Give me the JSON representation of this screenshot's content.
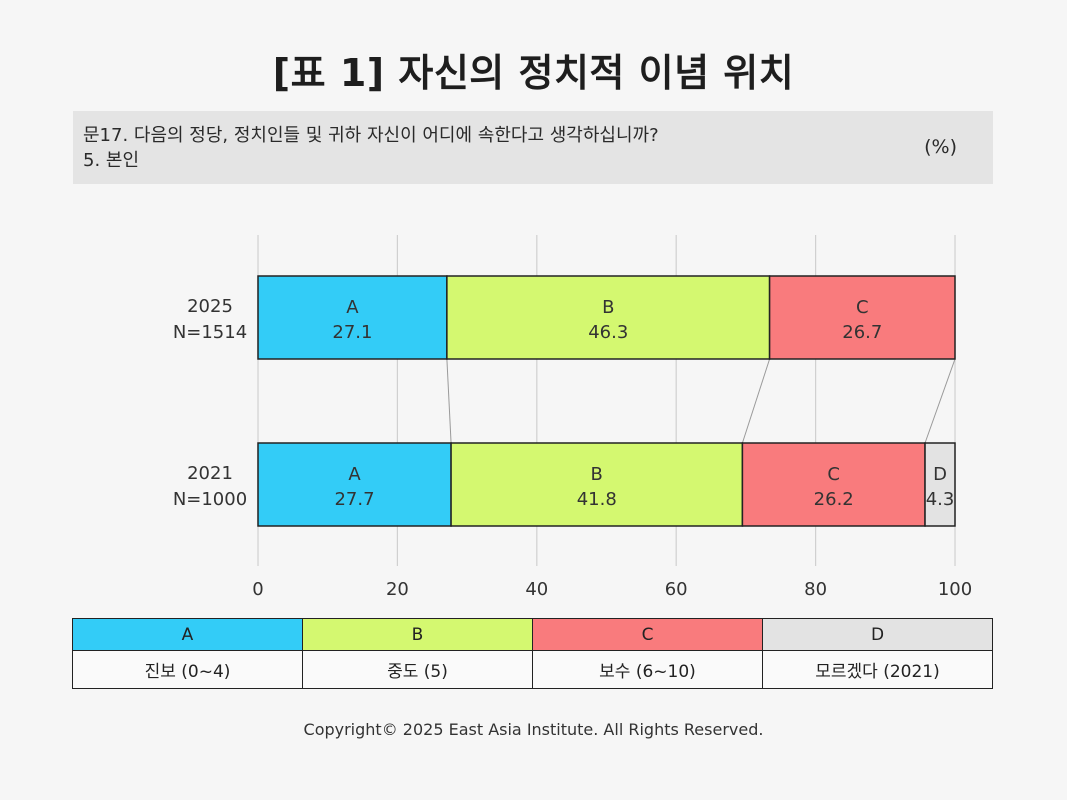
{
  "title": "[표 1] 자신의 정치적 이념 위치",
  "question": {
    "line1": "문17. 다음의 정당, 정치인들 및 귀하 자신이 어디에 속한다고 생각하십니까?",
    "line2": "5. 본인",
    "unit": "(%)"
  },
  "chart_data": {
    "type": "bar",
    "orientation": "horizontal",
    "stacked": true,
    "categories": [
      {
        "year": "2025",
        "n": "N=1514"
      },
      {
        "year": "2021",
        "n": "N=1000"
      }
    ],
    "series": [
      {
        "name": "A",
        "color": "#33ccf7",
        "values": [
          27.1,
          27.7
        ],
        "labels": [
          "27.1",
          "27.7"
        ]
      },
      {
        "name": "B",
        "color": "#d4f870",
        "values": [
          46.3,
          41.8
        ],
        "labels": [
          "46.3",
          "41.8"
        ]
      },
      {
        "name": "C",
        "color": "#f97b7d",
        "values": [
          26.7,
          26.2
        ],
        "labels": [
          "26.7",
          "26.2"
        ]
      },
      {
        "name": "D",
        "color": "#e3e3e3",
        "values": [
          0,
          4.3
        ],
        "labels": [
          "",
          "4.3"
        ]
      }
    ],
    "xlim": [
      0,
      100
    ],
    "xticks": [
      "0",
      "20",
      "40",
      "60",
      "80",
      "100"
    ],
    "grid": true,
    "connector_lines": true
  },
  "legend": [
    {
      "key": "A",
      "desc": "진보 (0~4)",
      "color": "#33ccf7"
    },
    {
      "key": "B",
      "desc": "중도 (5)",
      "color": "#d4f870"
    },
    {
      "key": "C",
      "desc": "보수 (6~10)",
      "color": "#f97b7d"
    },
    {
      "key": "D",
      "desc": "모르겠다 (2021)",
      "color": "#e3e3e3"
    }
  ],
  "copyright": "Copyright© 2025 East Asia Institute. All Rights Reserved."
}
